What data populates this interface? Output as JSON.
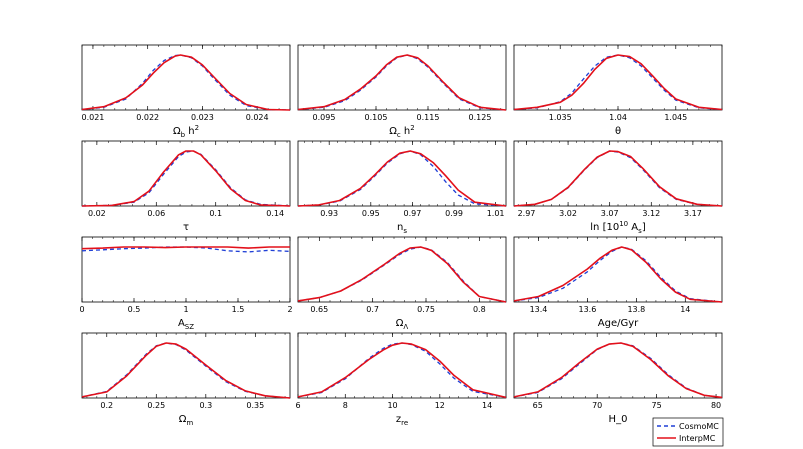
{
  "legend": {
    "position": "bottom-right",
    "items": [
      {
        "label": "CosmoMC",
        "color": "#1f3fd6",
        "dash": true
      },
      {
        "label": "InterpMC",
        "color": "#e3101a",
        "dash": false
      }
    ]
  },
  "chart_data": [
    {
      "type": "line",
      "xlabel": "Ω_b h^2",
      "xlim": [
        0.0208,
        0.0246
      ],
      "ticks": [
        0.021,
        0.022,
        0.023,
        0.024
      ],
      "tick_labels": [
        "0.021",
        "0.022",
        "0.023",
        "0.024"
      ],
      "series": [
        {
          "name": "CosmoMC",
          "x": [
            0.0208,
            0.0212,
            0.0216,
            0.0219,
            0.0221,
            0.0223,
            0.0225,
            0.0226,
            0.0228,
            0.023,
            0.0232,
            0.0235,
            0.0238,
            0.0242,
            0.0246
          ],
          "y": [
            0.01,
            0.05,
            0.2,
            0.48,
            0.72,
            0.9,
            0.99,
            1.0,
            0.95,
            0.8,
            0.58,
            0.27,
            0.08,
            0.01,
            0.0
          ]
        },
        {
          "name": "InterpMC",
          "x": [
            0.0208,
            0.0212,
            0.0216,
            0.0219,
            0.0221,
            0.0223,
            0.0225,
            0.0226,
            0.0228,
            0.023,
            0.0232,
            0.0235,
            0.0238,
            0.0242,
            0.0246
          ],
          "y": [
            0.01,
            0.06,
            0.22,
            0.45,
            0.67,
            0.86,
            0.98,
            1.0,
            0.96,
            0.82,
            0.61,
            0.3,
            0.1,
            0.01,
            0.0
          ]
        }
      ]
    },
    {
      "type": "line",
      "xlabel": "Ω_c h^2",
      "xlim": [
        0.09,
        0.13
      ],
      "ticks": [
        0.095,
        0.105,
        0.115,
        0.125
      ],
      "tick_labels": [
        "0.095",
        "0.105",
        "0.115",
        "0.125"
      ],
      "series": [
        {
          "name": "CosmoMC",
          "x": [
            0.09,
            0.095,
            0.099,
            0.102,
            0.105,
            0.107,
            0.109,
            0.111,
            0.113,
            0.115,
            0.118,
            0.121,
            0.125,
            0.13
          ],
          "y": [
            0.01,
            0.05,
            0.17,
            0.36,
            0.6,
            0.8,
            0.95,
            1.0,
            0.93,
            0.78,
            0.48,
            0.2,
            0.04,
            0.0
          ]
        },
        {
          "name": "InterpMC",
          "x": [
            0.09,
            0.095,
            0.099,
            0.102,
            0.105,
            0.107,
            0.109,
            0.111,
            0.113,
            0.115,
            0.118,
            0.121,
            0.125,
            0.13
          ],
          "y": [
            0.01,
            0.06,
            0.19,
            0.38,
            0.62,
            0.82,
            0.96,
            1.0,
            0.95,
            0.8,
            0.5,
            0.22,
            0.05,
            0.0
          ]
        }
      ]
    },
    {
      "type": "line",
      "xlabel": "θ",
      "xlim": [
        1.031,
        1.049
      ],
      "ticks": [
        1.035,
        1.04,
        1.045
      ],
      "tick_labels": [
        "1.035",
        "1.04",
        "1.045"
      ],
      "series": [
        {
          "name": "CosmoMC",
          "x": [
            1.031,
            1.033,
            1.035,
            1.036,
            1.037,
            1.038,
            1.039,
            1.04,
            1.041,
            1.042,
            1.043,
            1.044,
            1.045,
            1.047,
            1.049
          ],
          "y": [
            0.01,
            0.04,
            0.15,
            0.31,
            0.56,
            0.8,
            0.96,
            1.0,
            0.95,
            0.8,
            0.58,
            0.36,
            0.18,
            0.04,
            0.01
          ]
        },
        {
          "name": "InterpMC",
          "x": [
            1.031,
            1.033,
            1.035,
            1.036,
            1.037,
            1.038,
            1.039,
            1.04,
            1.041,
            1.042,
            1.043,
            1.044,
            1.045,
            1.047,
            1.049
          ],
          "y": [
            0.01,
            0.05,
            0.14,
            0.27,
            0.48,
            0.74,
            0.94,
            1.0,
            0.97,
            0.84,
            0.62,
            0.39,
            0.2,
            0.05,
            0.01
          ]
        }
      ]
    },
    {
      "type": "line",
      "xlabel": "τ",
      "xlim": [
        0.01,
        0.15
      ],
      "ticks": [
        0.02,
        0.06,
        0.1,
        0.14
      ],
      "tick_labels": [
        "0.02",
        "0.06",
        "0.1",
        "0.14"
      ],
      "series": [
        {
          "name": "CosmoMC",
          "x": [
            0.01,
            0.03,
            0.045,
            0.055,
            0.065,
            0.075,
            0.08,
            0.085,
            0.09,
            0.1,
            0.11,
            0.12,
            0.13,
            0.15
          ],
          "y": [
            0.0,
            0.01,
            0.07,
            0.24,
            0.58,
            0.9,
            0.98,
            1.0,
            0.94,
            0.66,
            0.33,
            0.11,
            0.03,
            0.0
          ]
        },
        {
          "name": "InterpMC",
          "x": [
            0.01,
            0.03,
            0.045,
            0.055,
            0.065,
            0.075,
            0.08,
            0.085,
            0.09,
            0.1,
            0.11,
            0.12,
            0.13,
            0.15
          ],
          "y": [
            0.0,
            0.01,
            0.08,
            0.27,
            0.62,
            0.93,
            1.0,
            1.0,
            0.93,
            0.64,
            0.31,
            0.1,
            0.02,
            0.0
          ]
        }
      ]
    },
    {
      "type": "line",
      "xlabel": "n_s",
      "xlim": [
        0.915,
        1.015
      ],
      "ticks": [
        0.93,
        0.95,
        0.97,
        0.99,
        1.01
      ],
      "tick_labels": [
        "0.93",
        "0.95",
        "0.97",
        "0.99",
        "1.01"
      ],
      "series": [
        {
          "name": "CosmoMC",
          "x": [
            0.915,
            0.925,
            0.935,
            0.945,
            0.952,
            0.958,
            0.964,
            0.969,
            0.974,
            0.98,
            0.986,
            0.992,
            1.0,
            1.015
          ],
          "y": [
            0.0,
            0.02,
            0.09,
            0.3,
            0.55,
            0.78,
            0.95,
            1.0,
            0.93,
            0.72,
            0.44,
            0.2,
            0.04,
            0.0
          ]
        },
        {
          "name": "InterpMC",
          "x": [
            0.915,
            0.925,
            0.935,
            0.945,
            0.952,
            0.958,
            0.964,
            0.969,
            0.974,
            0.98,
            0.986,
            0.992,
            1.0,
            1.015
          ],
          "y": [
            0.0,
            0.02,
            0.1,
            0.32,
            0.57,
            0.8,
            0.96,
            1.0,
            0.95,
            0.79,
            0.55,
            0.29,
            0.07,
            0.0
          ]
        }
      ]
    },
    {
      "type": "line",
      "xlabel": "ln [10^10 A_s]",
      "xlim": [
        2.955,
        3.205
      ],
      "ticks": [
        2.97,
        3.02,
        3.07,
        3.12,
        3.17
      ],
      "tick_labels": [
        "2.97",
        "3.02",
        "3.07",
        "3.12",
        "3.17"
      ],
      "series": [
        {
          "name": "CosmoMC",
          "x": [
            2.955,
            2.98,
            3.0,
            3.02,
            3.04,
            3.055,
            3.07,
            3.08,
            3.095,
            3.11,
            3.13,
            3.15,
            3.175,
            3.205
          ],
          "y": [
            0.0,
            0.03,
            0.12,
            0.33,
            0.66,
            0.88,
            1.0,
            0.98,
            0.88,
            0.66,
            0.33,
            0.12,
            0.03,
            0.0
          ]
        },
        {
          "name": "InterpMC",
          "x": [
            2.955,
            2.98,
            3.0,
            3.02,
            3.04,
            3.055,
            3.07,
            3.08,
            3.095,
            3.11,
            3.13,
            3.15,
            3.175,
            3.205
          ],
          "y": [
            0.0,
            0.03,
            0.12,
            0.34,
            0.67,
            0.89,
            1.0,
            0.99,
            0.9,
            0.68,
            0.35,
            0.13,
            0.03,
            0.0
          ]
        }
      ]
    },
    {
      "type": "line",
      "xlabel": "A_SZ",
      "xlim": [
        0,
        2
      ],
      "ticks": [
        0,
        0.5,
        1,
        1.5,
        2
      ],
      "tick_labels": [
        "0",
        "0.5",
        "1",
        "1.5",
        "2"
      ],
      "series": [
        {
          "name": "CosmoMC",
          "x": [
            0,
            0.2,
            0.4,
            0.6,
            0.8,
            1.0,
            1.2,
            1.4,
            1.6,
            1.8,
            2.0
          ],
          "y": [
            0.93,
            0.95,
            0.97,
            0.98,
            1.0,
            1.0,
            0.98,
            0.93,
            0.91,
            0.94,
            0.92
          ]
        },
        {
          "name": "InterpMC",
          "x": [
            0,
            0.2,
            0.4,
            0.6,
            0.8,
            1.0,
            1.2,
            1.4,
            1.6,
            1.8,
            2.0
          ],
          "y": [
            0.97,
            0.98,
            1.0,
            1.0,
            0.99,
            1.0,
            1.0,
            1.0,
            0.98,
            1.0,
            1.0
          ]
        }
      ]
    },
    {
      "type": "line",
      "xlabel": "Ω_Λ",
      "xlim": [
        0.63,
        0.825
      ],
      "ticks": [
        0.65,
        0.7,
        0.75,
        0.8
      ],
      "tick_labels": [
        "0.65",
        "0.7",
        "0.75",
        "0.8"
      ],
      "series": [
        {
          "name": "CosmoMC",
          "x": [
            0.63,
            0.65,
            0.67,
            0.69,
            0.71,
            0.725,
            0.735,
            0.745,
            0.755,
            0.77,
            0.785,
            0.8,
            0.825
          ],
          "y": [
            0.02,
            0.08,
            0.2,
            0.4,
            0.66,
            0.86,
            0.96,
            1.0,
            0.95,
            0.72,
            0.38,
            0.1,
            0.0
          ]
        },
        {
          "name": "InterpMC",
          "x": [
            0.63,
            0.65,
            0.67,
            0.69,
            0.71,
            0.725,
            0.735,
            0.745,
            0.755,
            0.77,
            0.785,
            0.8,
            0.825
          ],
          "y": [
            0.02,
            0.08,
            0.2,
            0.41,
            0.67,
            0.88,
            0.98,
            1.0,
            0.94,
            0.7,
            0.36,
            0.1,
            0.0
          ]
        }
      ]
    },
    {
      "type": "line",
      "xlabel": "Age/Gyr",
      "xlim": [
        13.3,
        14.15
      ],
      "ticks": [
        13.4,
        13.6,
        13.8,
        14
      ],
      "tick_labels": [
        "13.4",
        "13.6",
        "13.8",
        "14"
      ],
      "series": [
        {
          "name": "CosmoMC",
          "x": [
            13.3,
            13.4,
            13.5,
            13.6,
            13.65,
            13.7,
            13.74,
            13.78,
            13.84,
            13.9,
            13.96,
            14.02,
            14.15
          ],
          "y": [
            0.02,
            0.08,
            0.25,
            0.55,
            0.75,
            0.92,
            1.0,
            0.96,
            0.75,
            0.45,
            0.2,
            0.06,
            0.0
          ]
        },
        {
          "name": "InterpMC",
          "x": [
            13.3,
            13.4,
            13.5,
            13.6,
            13.65,
            13.7,
            13.74,
            13.78,
            13.84,
            13.9,
            13.96,
            14.02,
            14.15
          ],
          "y": [
            0.02,
            0.1,
            0.3,
            0.6,
            0.79,
            0.94,
            1.0,
            0.95,
            0.72,
            0.42,
            0.18,
            0.05,
            0.0
          ]
        }
      ]
    },
    {
      "type": "line",
      "xlabel": "Ω_m",
      "xlim": [
        0.175,
        0.385
      ],
      "ticks": [
        0.2,
        0.25,
        0.3,
        0.35
      ],
      "tick_labels": [
        "0.2",
        "0.25",
        "0.3",
        "0.35"
      ],
      "series": [
        {
          "name": "CosmoMC",
          "x": [
            0.175,
            0.2,
            0.22,
            0.24,
            0.25,
            0.26,
            0.27,
            0.28,
            0.3,
            0.32,
            0.34,
            0.36,
            0.385
          ],
          "y": [
            0.02,
            0.12,
            0.42,
            0.8,
            0.95,
            1.0,
            0.97,
            0.87,
            0.58,
            0.3,
            0.12,
            0.04,
            0.0
          ]
        },
        {
          "name": "InterpMC",
          "x": [
            0.175,
            0.2,
            0.22,
            0.24,
            0.25,
            0.26,
            0.27,
            0.28,
            0.3,
            0.32,
            0.34,
            0.36,
            0.385
          ],
          "y": [
            0.02,
            0.11,
            0.4,
            0.78,
            0.94,
            1.0,
            0.98,
            0.89,
            0.6,
            0.32,
            0.13,
            0.04,
            0.0
          ]
        }
      ]
    },
    {
      "type": "line",
      "xlabel": "z_re",
      "xlim": [
        6,
        14.8
      ],
      "ticks": [
        6,
        8,
        10,
        12,
        14
      ],
      "tick_labels": [
        "6",
        "8",
        "10",
        "12",
        "14"
      ],
      "series": [
        {
          "name": "CosmoMC",
          "x": [
            6,
            7,
            8,
            9,
            9.6,
            10,
            10.4,
            10.8,
            11.4,
            12,
            12.6,
            13.4,
            14.8
          ],
          "y": [
            0.02,
            0.1,
            0.35,
            0.72,
            0.9,
            0.98,
            1.0,
            0.97,
            0.85,
            0.62,
            0.36,
            0.12,
            0.01
          ]
        },
        {
          "name": "InterpMC",
          "x": [
            6,
            7,
            8,
            9,
            9.6,
            10,
            10.4,
            10.8,
            11.4,
            12,
            12.6,
            13.4,
            14.8
          ],
          "y": [
            0.02,
            0.11,
            0.37,
            0.7,
            0.87,
            0.96,
            1.0,
            0.98,
            0.88,
            0.67,
            0.41,
            0.15,
            0.01
          ]
        }
      ]
    },
    {
      "type": "line",
      "xlabel": "H_0",
      "xlim": [
        63,
        80.5
      ],
      "ticks": [
        65,
        70,
        75,
        80
      ],
      "tick_labels": [
        "65",
        "70",
        "75",
        "80"
      ],
      "series": [
        {
          "name": "CosmoMC",
          "x": [
            63,
            65,
            67,
            68.5,
            70,
            71,
            72,
            73,
            74.5,
            76,
            77.5,
            79,
            80.5
          ],
          "y": [
            0.02,
            0.1,
            0.35,
            0.62,
            0.88,
            0.98,
            1.0,
            0.95,
            0.72,
            0.42,
            0.18,
            0.05,
            0.01
          ]
        },
        {
          "name": "InterpMC",
          "x": [
            63,
            65,
            67,
            68.5,
            70,
            71,
            72,
            73,
            74.5,
            76,
            77.5,
            79,
            80.5
          ],
          "y": [
            0.02,
            0.11,
            0.37,
            0.64,
            0.89,
            0.98,
            1.0,
            0.94,
            0.7,
            0.4,
            0.17,
            0.05,
            0.01
          ]
        }
      ]
    }
  ]
}
